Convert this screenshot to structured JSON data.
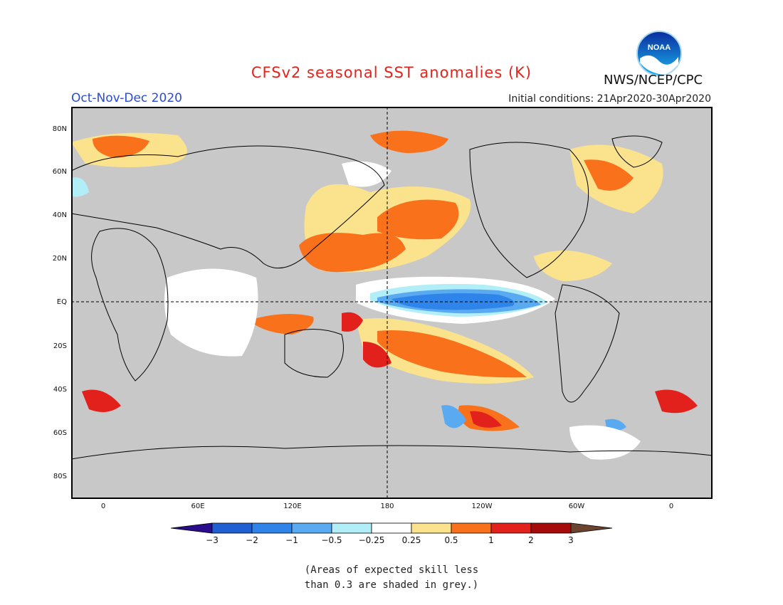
{
  "title": "CFSv2 seasonal SST anomalies (K)",
  "season": "Oct-Nov-Dec 2020",
  "initial_conditions": "Initial conditions: 21Apr2020-30Apr2020",
  "agency": "NWS/NCEP/CPC",
  "logo_text": "NOAA",
  "lat_labels": [
    "80N",
    "60N",
    "40N",
    "20N",
    "EQ",
    "20S",
    "40S",
    "60S",
    "80S"
  ],
  "lon_labels": [
    "0",
    "60E",
    "120E",
    "180",
    "120W",
    "60W",
    "0"
  ],
  "colorbar": {
    "labels": [
      "−3",
      "−2",
      "−1",
      "−0.5",
      "−0.25",
      "0.25",
      "0.5",
      "1",
      "2",
      "3"
    ],
    "colors": [
      "#2a0d8c",
      "#1f5fd1",
      "#2e84e8",
      "#5aaaf2",
      "#b1eef7",
      "#ffffff",
      "#fbe38e",
      "#f9711b",
      "#e3211c",
      "#a50b0b",
      "#6b4430"
    ]
  },
  "note": [
    "(Areas of expected skill less",
    "than 0.3 are shaded in grey.)"
  ],
  "colors": {
    "skill_mask": "#c8c8c8",
    "land": "#ffffff",
    "coast": "#000000"
  }
}
